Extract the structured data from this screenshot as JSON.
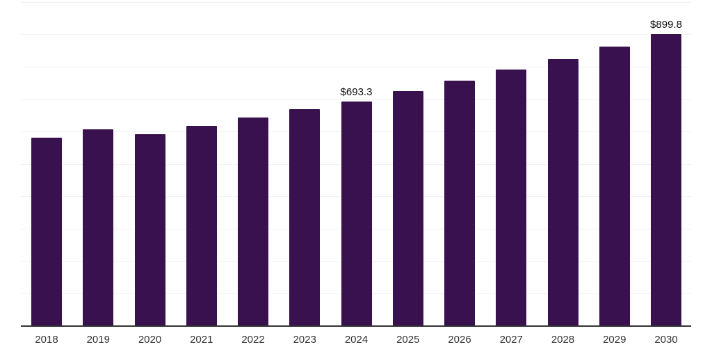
{
  "chart_data": {
    "type": "bar",
    "title": "",
    "xlabel": "",
    "ylabel": "",
    "categories": [
      "2018",
      "2019",
      "2020",
      "2021",
      "2022",
      "2023",
      "2024",
      "2025",
      "2026",
      "2027",
      "2028",
      "2029",
      "2030"
    ],
    "values": [
      581.6,
      606.3,
      592.4,
      618.1,
      643.8,
      668.4,
      693.3,
      724.1,
      756.2,
      790.5,
      823.7,
      861.2,
      899.8
    ],
    "value_labels": [
      {
        "category": "2024",
        "text": "$693.3"
      },
      {
        "category": "2030",
        "text": "$899.8"
      }
    ],
    "ylim": [
      0,
      1000
    ],
    "y_grid_step": 100,
    "grid": "horizontal",
    "y_axis_tick_labels": "none",
    "legend": "none",
    "colors": {
      "bar": "#38114e",
      "grid_line": "#f2f2f2",
      "axis_line": "#333333",
      "tick_label": "#333333",
      "value_label": "#0d0d0d",
      "background": "#ffffff"
    }
  }
}
